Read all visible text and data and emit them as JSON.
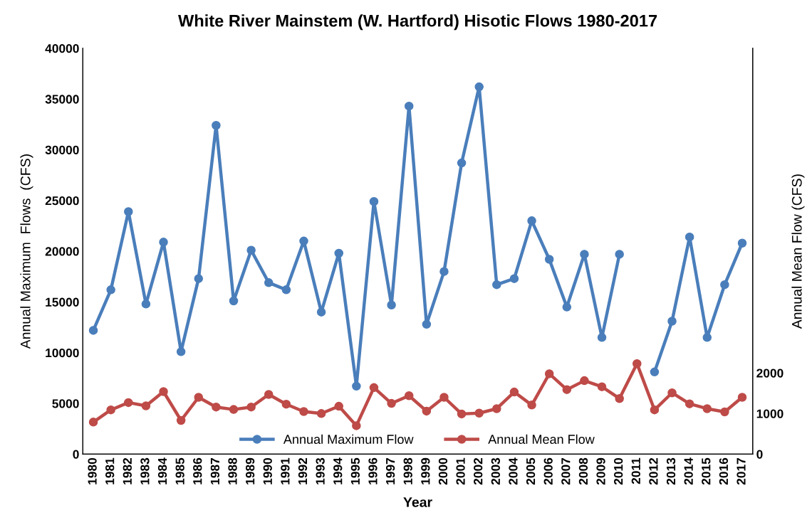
{
  "chart_data": {
    "type": "line",
    "title": "White River Mainstem (W. Hartford) Hisotic Flows 1980-2017",
    "xlabel": "Year",
    "ylabel": "Annual Maximum  Flows  (CFS)",
    "y2label": "Annual Mean Flow (CFS)",
    "categories": [
      "1980",
      "1981",
      "1982",
      "1983",
      "1984",
      "1985",
      "1986",
      "1987",
      "1988",
      "1989",
      "1990",
      "1991",
      "1992",
      "1993",
      "1994",
      "1995",
      "1996",
      "1997",
      "1998",
      "1999",
      "2000",
      "2001",
      "2002",
      "2003",
      "2004",
      "2005",
      "2006",
      "2007",
      "2008",
      "2009",
      "2010",
      "2011",
      "2012",
      "2013",
      "2014",
      "2015",
      "2016",
      "2017"
    ],
    "series": [
      {
        "name": "Annual Maximum Flow",
        "color": "#4a7ebb",
        "values": [
          12200,
          16200,
          23900,
          14800,
          20900,
          10100,
          17300,
          32400,
          15100,
          20100,
          16900,
          16200,
          21000,
          14000,
          19800,
          6700,
          24900,
          14700,
          34300,
          12800,
          18000,
          28700,
          36200,
          16700,
          17300,
          23000,
          19200,
          14500,
          19700,
          11500,
          19700,
          null,
          8100,
          13100,
          21400,
          11500,
          16700,
          20800
        ]
      },
      {
        "name": "Annual Mean Flow",
        "color": "#be4b48",
        "axis": "y2",
        "values": [
          790,
          1090,
          1270,
          1190,
          1540,
          830,
          1400,
          1160,
          1100,
          1160,
          1470,
          1230,
          1050,
          1000,
          1180,
          700,
          1640,
          1250,
          1440,
          1060,
          1400,
          990,
          1010,
          1120,
          1530,
          1210,
          1980,
          1590,
          1810,
          1660,
          1370,
          2230,
          1090,
          1510,
          1240,
          1120,
          1040,
          1400
        ]
      }
    ],
    "ylim": [
      0,
      40000
    ],
    "yticks": [
      0,
      5000,
      10000,
      15000,
      20000,
      25000,
      30000,
      35000,
      40000
    ],
    "y2lim": [
      0,
      10000
    ],
    "y2ticks": [
      0,
      1000,
      2000
    ],
    "marker": "circle",
    "line_style": "solid",
    "grid": false,
    "legend": "bottom"
  }
}
